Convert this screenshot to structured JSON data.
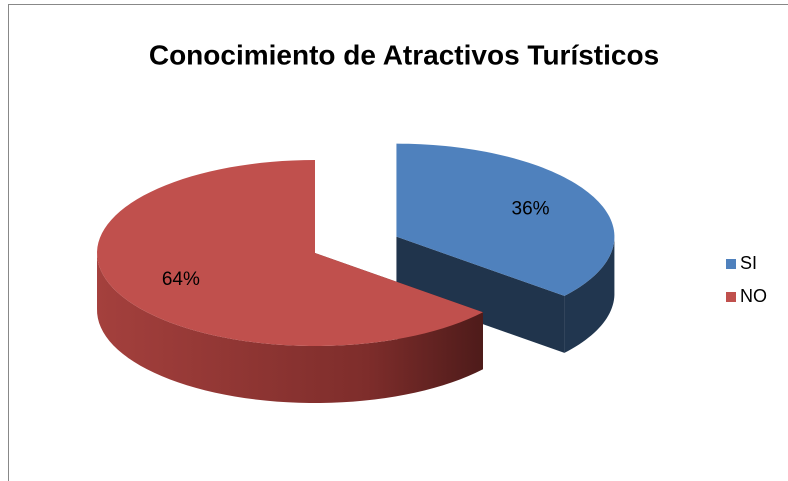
{
  "chart_data": {
    "type": "pie",
    "title": "Conocimiento de Atractivos Turísticos",
    "categories": [
      "SI",
      "NO"
    ],
    "values": [
      36,
      64
    ],
    "value_labels": [
      "36%",
      "64%"
    ],
    "colors": [
      "#4f81bd",
      "#c0504d"
    ],
    "legend": "right"
  }
}
